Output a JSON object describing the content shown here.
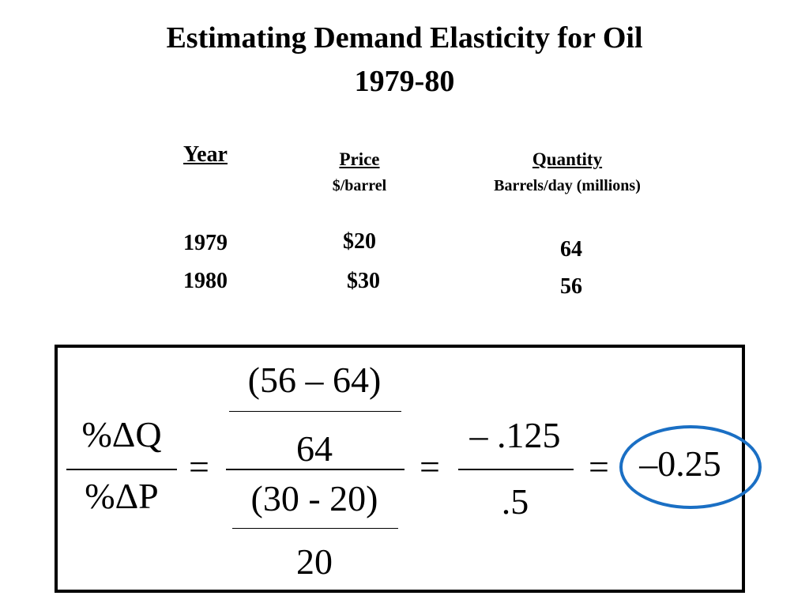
{
  "title": {
    "line1": "Estimating Demand Elasticity for Oil",
    "line2": "1979-80"
  },
  "table": {
    "headers": {
      "year": "Year",
      "price": "Price",
      "price_unit": "$/barrel",
      "quantity": "Quantity",
      "quantity_unit": "Barrels/day (millions)"
    },
    "rows": [
      {
        "year": "1979",
        "price": "$20",
        "quantity": "64"
      },
      {
        "year": "1980",
        "price": "$30",
        "quantity": "56"
      }
    ]
  },
  "equation": {
    "lhs_numerator": "%ΔQ",
    "lhs_denominator": "%ΔP",
    "equals": "=",
    "quantity_change": "(56 – 64)",
    "quantity_base": "64",
    "price_change": "(30 - 20)",
    "price_base": "20",
    "simplified_numerator": "– .125",
    "simplified_denominator": ".5",
    "result": "–0.25"
  },
  "colors": {
    "highlight_circle": "#1a6fc4"
  }
}
